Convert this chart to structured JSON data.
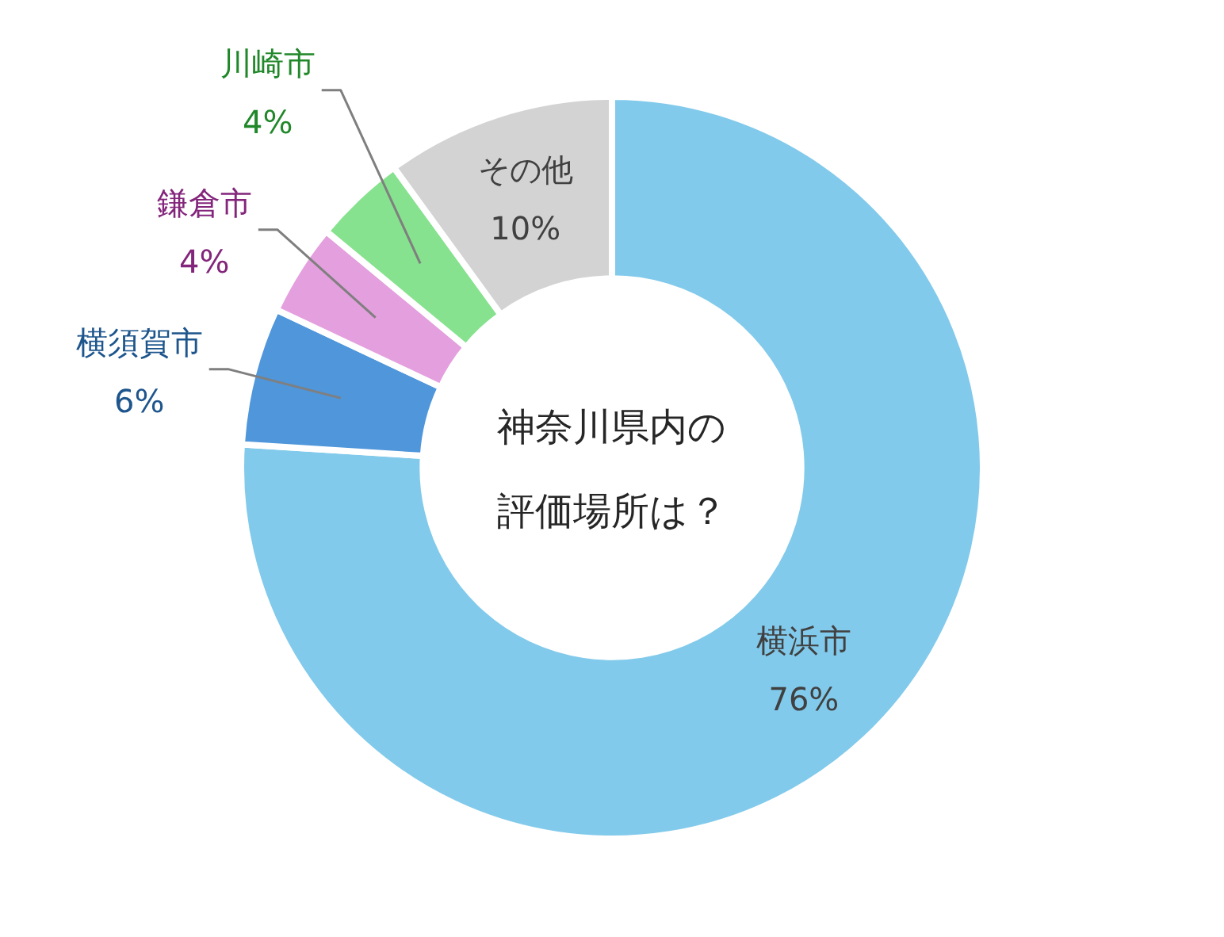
{
  "chart_data": {
    "type": "donut",
    "title": "神奈川県内の評価場所は？",
    "categories": [
      "横浜市",
      "横須賀市",
      "鎌倉市",
      "川崎市",
      "その他"
    ],
    "values": [
      76,
      6,
      4,
      4,
      10
    ],
    "colors": [
      "#82caeb",
      "#4f96db",
      "#e49fde",
      "#86e28e",
      "#d3d3d3"
    ],
    "value_labels": [
      "76%",
      "6%",
      "4%",
      "4%",
      "10%"
    ],
    "legend": false
  }
}
